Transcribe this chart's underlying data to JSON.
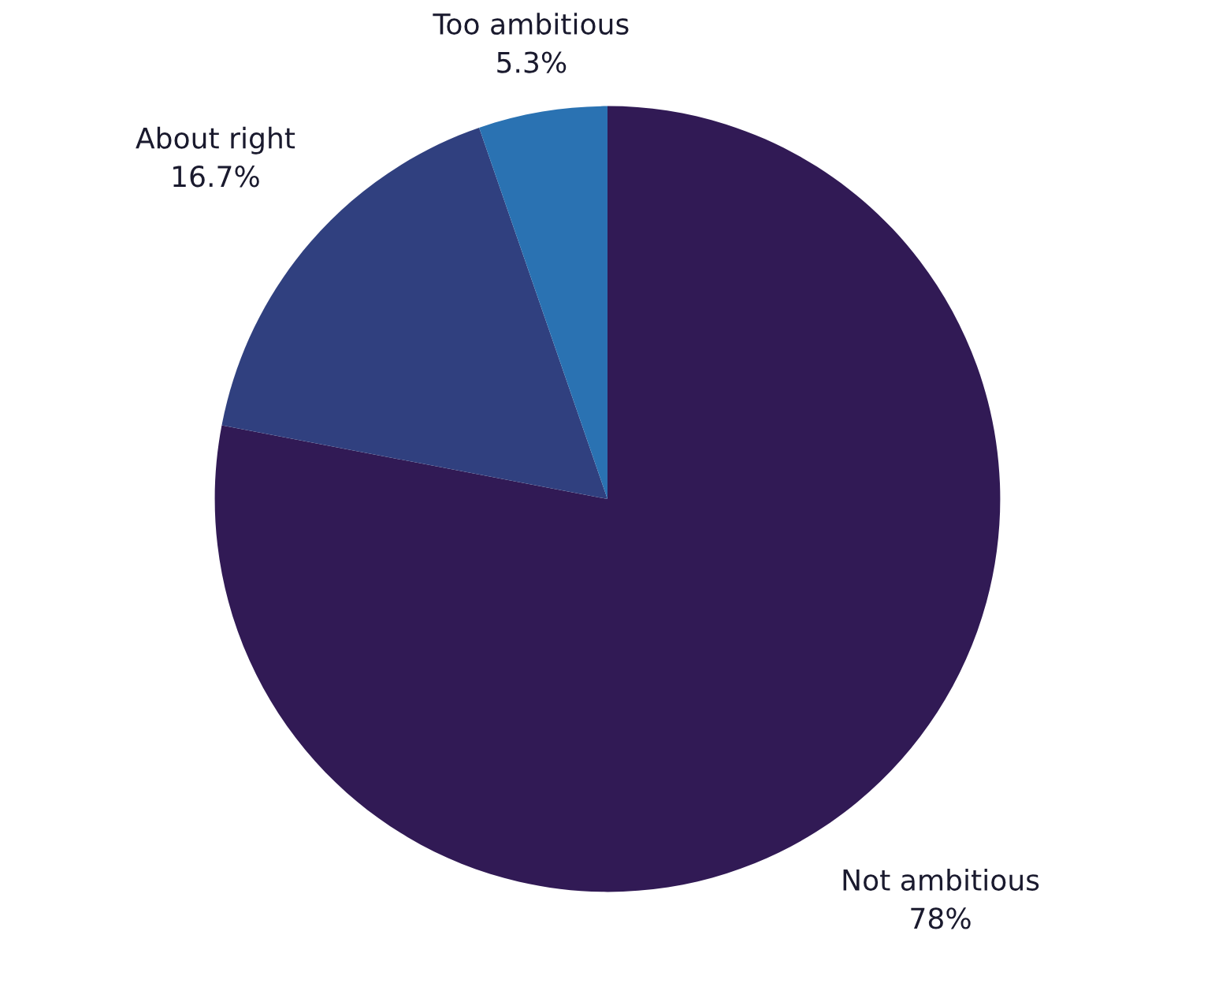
{
  "chart_data": {
    "type": "pie",
    "categories": [
      "Not ambitious",
      "About right",
      "Too ambitious"
    ],
    "values": [
      78,
      16.7,
      5.3
    ],
    "value_labels": [
      "78%",
      "16.7%",
      "5.3%"
    ],
    "colors": [
      "#311a55",
      "#30407f",
      "#2a72b2"
    ]
  }
}
